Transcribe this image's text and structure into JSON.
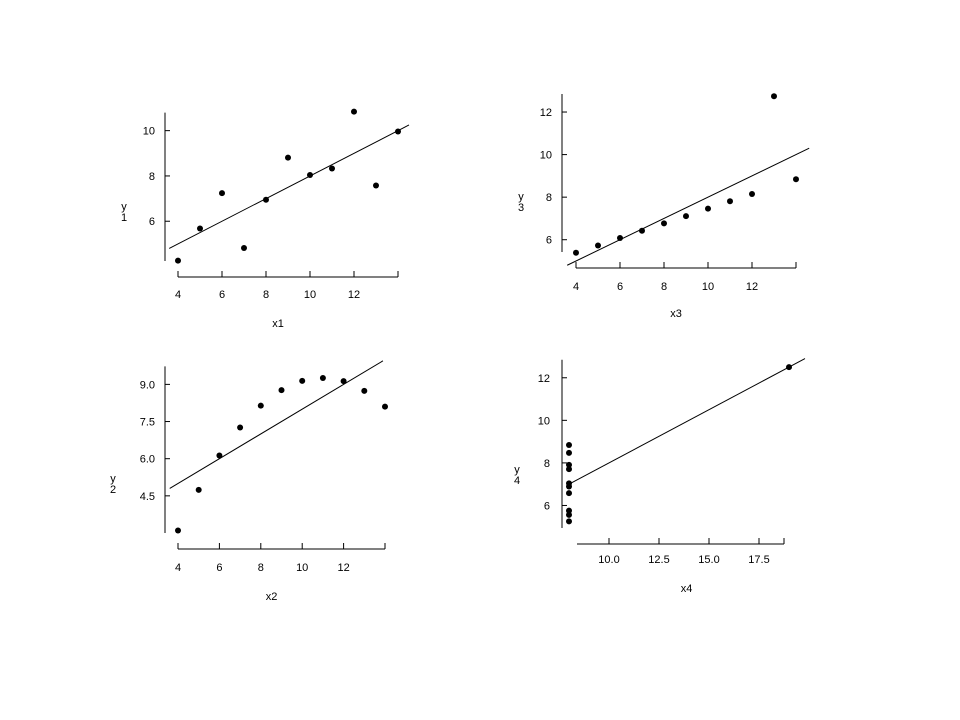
{
  "chart_data": [
    {
      "type": "scatter",
      "id": "anscombe-1",
      "xlabel": "x1",
      "ylabel": [
        "y",
        "1"
      ],
      "xlim": [
        4,
        14
      ],
      "ylim": [
        4.2,
        11.0
      ],
      "xticks": [
        4,
        6,
        8,
        10,
        12,
        14
      ],
      "xtick_labels": [
        "4",
        "6",
        "8",
        "10",
        "12",
        ""
      ],
      "yticks": [
        6,
        8,
        10
      ],
      "ytick_labels": [
        "6",
        "8",
        "10"
      ],
      "points": [
        {
          "x": 4,
          "y": 4.26
        },
        {
          "x": 5,
          "y": 5.68
        },
        {
          "x": 6,
          "y": 7.24
        },
        {
          "x": 7,
          "y": 4.82
        },
        {
          "x": 8,
          "y": 6.95
        },
        {
          "x": 9,
          "y": 8.81
        },
        {
          "x": 10,
          "y": 8.04
        },
        {
          "x": 11,
          "y": 8.33
        },
        {
          "x": 12,
          "y": 10.84
        },
        {
          "x": 13,
          "y": 7.58
        },
        {
          "x": 14,
          "y": 9.96
        }
      ],
      "fit_line": {
        "intercept": 3.0,
        "slope": 0.5,
        "x_range": [
          3.6,
          14.5
        ]
      }
    },
    {
      "type": "scatter",
      "id": "anscombe-3",
      "xlabel": "x3",
      "ylabel": [
        "y",
        "3"
      ],
      "xlim": [
        4,
        14
      ],
      "ylim": [
        5.0,
        12.8
      ],
      "xticks": [
        4,
        6,
        8,
        10,
        12,
        14
      ],
      "xtick_labels": [
        "4",
        "6",
        "8",
        "10",
        "12",
        ""
      ],
      "yticks": [
        6,
        8,
        10,
        12
      ],
      "ytick_labels": [
        "6",
        "8",
        "10",
        "12"
      ],
      "points": [
        {
          "x": 4,
          "y": 5.39
        },
        {
          "x": 5,
          "y": 5.73
        },
        {
          "x": 6,
          "y": 6.08
        },
        {
          "x": 7,
          "y": 6.42
        },
        {
          "x": 8,
          "y": 6.77
        },
        {
          "x": 9,
          "y": 7.11
        },
        {
          "x": 10,
          "y": 7.46
        },
        {
          "x": 11,
          "y": 7.81
        },
        {
          "x": 12,
          "y": 8.15
        },
        {
          "x": 13,
          "y": 12.74
        },
        {
          "x": 14,
          "y": 8.84
        }
      ],
      "fit_line": {
        "intercept": 3.0,
        "slope": 0.5,
        "x_range": [
          3.6,
          14.6
        ]
      }
    },
    {
      "type": "scatter",
      "id": "anscombe-2",
      "xlabel": "x2",
      "ylabel": [
        "y",
        "2"
      ],
      "xlim": [
        4,
        14
      ],
      "ylim": [
        3.0,
        9.5
      ],
      "xticks": [
        4,
        6,
        8,
        10,
        12,
        14
      ],
      "xtick_labels": [
        "4",
        "6",
        "8",
        "10",
        "12",
        ""
      ],
      "yticks": [
        4.5,
        6.0,
        7.5,
        9.0
      ],
      "ytick_labels": [
        "4.5",
        "6.0",
        "7.5",
        "9.0"
      ],
      "points": [
        {
          "x": 4,
          "y": 3.1
        },
        {
          "x": 5,
          "y": 4.74
        },
        {
          "x": 6,
          "y": 6.13
        },
        {
          "x": 7,
          "y": 7.26
        },
        {
          "x": 8,
          "y": 8.14
        },
        {
          "x": 9,
          "y": 8.77
        },
        {
          "x": 10,
          "y": 9.14
        },
        {
          "x": 11,
          "y": 9.26
        },
        {
          "x": 12,
          "y": 9.13
        },
        {
          "x": 13,
          "y": 8.74
        },
        {
          "x": 14,
          "y": 8.1
        }
      ],
      "fit_line": {
        "intercept": 3.0,
        "slope": 0.5,
        "x_range": [
          3.6,
          13.9
        ]
      }
    },
    {
      "type": "scatter",
      "id": "anscombe-4",
      "xlabel": "x4",
      "ylabel": [
        "y",
        "4"
      ],
      "xlim": [
        8,
        19
      ],
      "ylim": [
        4.8,
        12.6
      ],
      "xticks": [
        10.0,
        12.5,
        15.0,
        17.5
      ],
      "xtick_labels": [
        "10.0",
        "12.5",
        "15.0",
        "17.5"
      ],
      "yticks": [
        6,
        8,
        10,
        12
      ],
      "ytick_labels": [
        "6",
        "8",
        "10",
        "12"
      ],
      "points": [
        {
          "x": 8,
          "y": 6.58
        },
        {
          "x": 8,
          "y": 5.76
        },
        {
          "x": 8,
          "y": 7.71
        },
        {
          "x": 8,
          "y": 8.84
        },
        {
          "x": 8,
          "y": 8.47
        },
        {
          "x": 8,
          "y": 7.04
        },
        {
          "x": 8,
          "y": 5.25
        },
        {
          "x": 19,
          "y": 12.5
        },
        {
          "x": 8,
          "y": 5.56
        },
        {
          "x": 8,
          "y": 7.91
        },
        {
          "x": 8,
          "y": 6.89
        }
      ],
      "fit_line": {
        "intercept": 3.0,
        "slope": 0.5,
        "x_range": [
          7.95,
          19.8
        ]
      }
    }
  ]
}
